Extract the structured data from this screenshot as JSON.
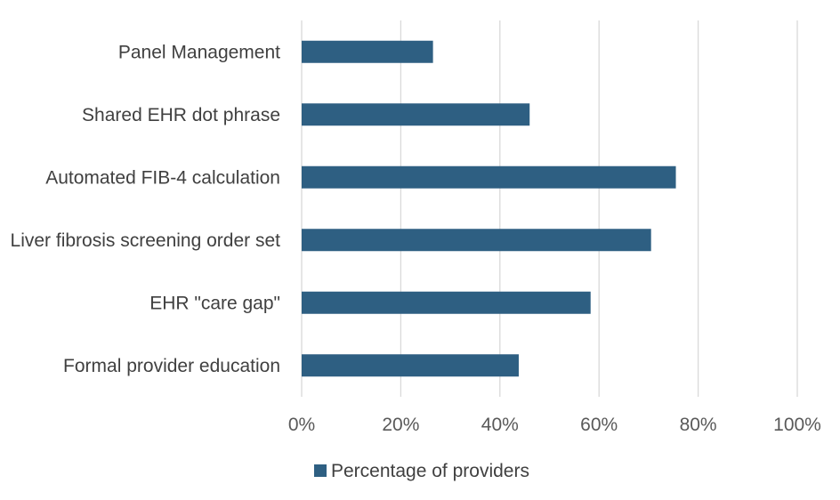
{
  "chart_data": {
    "type": "bar",
    "orientation": "horizontal",
    "categories": [
      "Panel Management",
      "Shared EHR dot phrase",
      "Automated FIB-4 calculation",
      "Liver fibrosis screening order set",
      "EHR \"care gap\"",
      "Formal provider education"
    ],
    "series": [
      {
        "name": "Percentage of providers",
        "values": [
          26.5,
          46,
          75.5,
          70.5,
          58.3,
          43.8
        ],
        "color": "#2e5f82"
      }
    ],
    "xlim": [
      0,
      100
    ],
    "x_ticks": [
      "0%",
      "20%",
      "40%",
      "60%",
      "80%",
      "100%"
    ],
    "x_tick_values": [
      0,
      20,
      40,
      60,
      80,
      100
    ],
    "grid": true,
    "legend_position": "bottom"
  }
}
